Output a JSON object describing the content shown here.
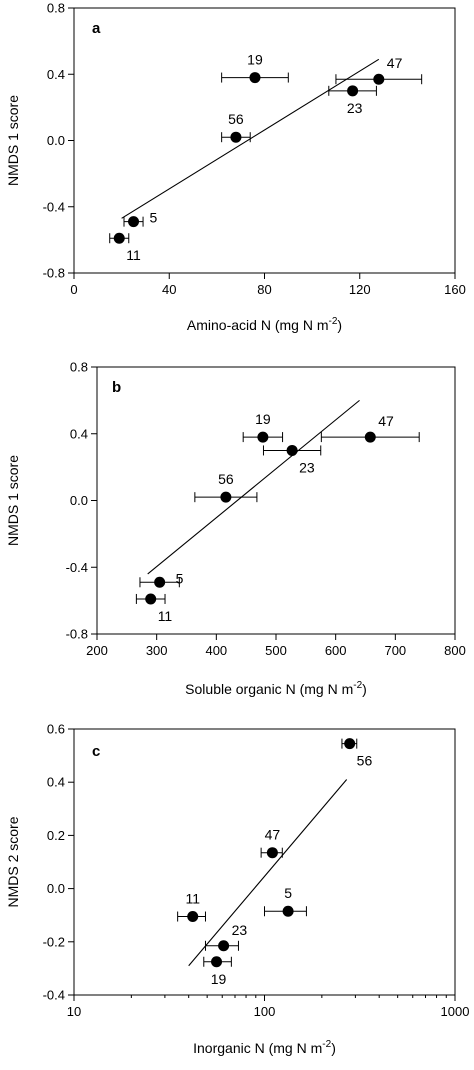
{
  "chart_data": [
    {
      "type": "scatter",
      "panel_label": "a",
      "xlabel": "Amino-acid N (mg N m",
      "xlabel_sup": "-2",
      "xlabel_end": ")",
      "ylabel": "NMDS 1 score",
      "xscale": "linear",
      "xlim": [
        0,
        160
      ],
      "ylim": [
        -0.8,
        0.8
      ],
      "xticks": [
        0,
        40,
        80,
        120,
        160
      ],
      "xticklabels": [
        "0",
        "40",
        "80",
        "120",
        "160"
      ],
      "yticks": [
        -0.8,
        -0.4,
        0.0,
        0.4,
        0.8
      ],
      "yticklabels": [
        "-0.8",
        "-0.4",
        "0.0",
        "0.4",
        "0.8"
      ],
      "points": [
        {
          "label": "19",
          "x": 76,
          "y": 0.38,
          "xerr": 14,
          "label_pos": "above"
        },
        {
          "label": "47",
          "x": 128,
          "y": 0.37,
          "xerr": 18,
          "label_pos": "above-right"
        },
        {
          "label": "23",
          "x": 117,
          "y": 0.3,
          "xerr": 10,
          "label_pos": "below"
        },
        {
          "label": "56",
          "x": 68,
          "y": 0.02,
          "xerr": 6,
          "label_pos": "above"
        },
        {
          "label": "5",
          "x": 25,
          "y": -0.49,
          "xerr": 4,
          "label_pos": "right"
        },
        {
          "label": "11",
          "x": 19,
          "y": -0.59,
          "xerr": 4,
          "label_pos": "below-right"
        }
      ],
      "fit": {
        "x": [
          20,
          128
        ],
        "y": [
          -0.47,
          0.49
        ]
      }
    },
    {
      "type": "scatter",
      "panel_label": "b",
      "xlabel": "Soluble organic N (mg N m",
      "xlabel_sup": "-2",
      "xlabel_end": ")",
      "ylabel": "NMDS 1 score",
      "xscale": "linear",
      "xlim": [
        200,
        800
      ],
      "ylim": [
        -0.8,
        0.8
      ],
      "xticks": [
        200,
        300,
        400,
        500,
        600,
        700,
        800
      ],
      "xticklabels": [
        "200",
        "300",
        "400",
        "500",
        "600",
        "700",
        "800"
      ],
      "yticks": [
        -0.8,
        -0.4,
        0.0,
        0.4,
        0.8
      ],
      "yticklabels": [
        "-0.8",
        "-0.4",
        "0.0",
        "0.4",
        "0.8"
      ],
      "points": [
        {
          "label": "19",
          "x": 478,
          "y": 0.38,
          "xerr": 33,
          "label_pos": "above"
        },
        {
          "label": "47",
          "x": 658,
          "y": 0.38,
          "xerr": 82,
          "label_pos": "above-right"
        },
        {
          "label": "23",
          "x": 527,
          "y": 0.3,
          "xerr": 48,
          "label_pos": "below-right"
        },
        {
          "label": "56",
          "x": 416,
          "y": 0.02,
          "xerr": 52,
          "label_pos": "above"
        },
        {
          "label": "5",
          "x": 305,
          "y": -0.49,
          "xerr": 33,
          "label_pos": "right"
        },
        {
          "label": "11",
          "x": 290,
          "y": -0.59,
          "xerr": 24,
          "label_pos": "below-right"
        }
      ],
      "fit": {
        "x": [
          285,
          640
        ],
        "y": [
          -0.44,
          0.6
        ]
      }
    },
    {
      "type": "scatter",
      "panel_label": "c",
      "xlabel": "Inorganic N (mg N m",
      "xlabel_sup": "-2",
      "xlabel_end": ")",
      "ylabel": "NMDS 2 score",
      "xscale": "log",
      "xlim": [
        10,
        1000
      ],
      "ylim": [
        -0.4,
        0.6
      ],
      "xticks": [
        10,
        100,
        1000
      ],
      "xticklabels": [
        "10",
        "100",
        "1000"
      ],
      "xminorticks": [
        20,
        30,
        40,
        50,
        60,
        70,
        80,
        90,
        200,
        300,
        400,
        500,
        600,
        700,
        800,
        900
      ],
      "yticks": [
        -0.4,
        -0.2,
        0.0,
        0.2,
        0.4,
        0.6
      ],
      "yticklabels": [
        "-0.4",
        "-0.2",
        "0.0",
        "0.2",
        "0.4",
        "0.6"
      ],
      "points": [
        {
          "label": "56",
          "x": 280,
          "y": 0.545,
          "xerr_lo": 255,
          "xerr_hi": 305,
          "label_pos": "below-right"
        },
        {
          "label": "47",
          "x": 110,
          "y": 0.135,
          "xerr_lo": 96,
          "xerr_hi": 124,
          "label_pos": "above"
        },
        {
          "label": "5",
          "x": 133,
          "y": -0.085,
          "xerr_lo": 100,
          "xerr_hi": 166,
          "label_pos": "above"
        },
        {
          "label": "11",
          "x": 42,
          "y": -0.105,
          "xerr_lo": 35,
          "xerr_hi": 49,
          "label_pos": "above"
        },
        {
          "label": "23",
          "x": 61,
          "y": -0.215,
          "xerr_lo": 49,
          "xerr_hi": 73,
          "label_pos": "above-right"
        },
        {
          "label": "19",
          "x": 56,
          "y": -0.275,
          "xerr_lo": 48,
          "xerr_hi": 67,
          "label_pos": "below"
        }
      ],
      "fit": {
        "x": [
          40,
          270
        ],
        "y": [
          -0.29,
          0.41
        ]
      }
    }
  ]
}
